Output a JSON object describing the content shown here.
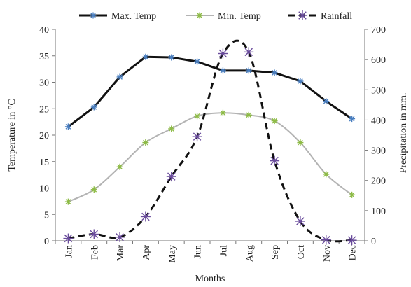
{
  "chart_data": {
    "type": "line",
    "categories": [
      "Jan",
      "Feb",
      "Mar",
      "Apr",
      "May",
      "Jun",
      "Jul",
      "Aug",
      "Sep",
      "Oct",
      "Nov",
      "Dec"
    ],
    "xlabel": "Months",
    "ylabel": "Temperature in °C",
    "y2label": "Precipitation in mm.",
    "ylim": [
      0,
      40
    ],
    "y2lim": [
      0,
      700
    ],
    "yticks": [
      "0",
      "5",
      "10",
      "15",
      "20",
      "25",
      "30",
      "35",
      "40"
    ],
    "y2ticks": [
      "0",
      "100",
      "200",
      "300",
      "400",
      "500",
      "600",
      "700"
    ],
    "grid": false,
    "legend_position": "top",
    "series": [
      {
        "name": "Max. Temp",
        "axis": "left",
        "color": "#111111",
        "style": "solid",
        "smooth": false,
        "marker_color": "#4a7fc0",
        "values": [
          21.6,
          25.3,
          31.0,
          34.8,
          34.7,
          33.9,
          32.2,
          32.2,
          31.8,
          30.2,
          26.4,
          23.1
        ]
      },
      {
        "name": "Min. Temp",
        "axis": "left",
        "color": "#b3b3b3",
        "style": "solid",
        "smooth": true,
        "marker_color": "#8dbb45",
        "values": [
          7.4,
          9.7,
          14.0,
          18.6,
          21.2,
          23.6,
          24.2,
          23.8,
          22.7,
          18.6,
          12.6,
          8.7
        ]
      },
      {
        "name": "Rainfall",
        "axis": "right",
        "color": "#111111",
        "style": "dashed",
        "smooth": true,
        "marker_color": "#6a4c9c",
        "values": [
          8,
          22,
          12,
          80,
          213,
          345,
          620,
          625,
          265,
          65,
          3,
          2
        ]
      }
    ]
  }
}
